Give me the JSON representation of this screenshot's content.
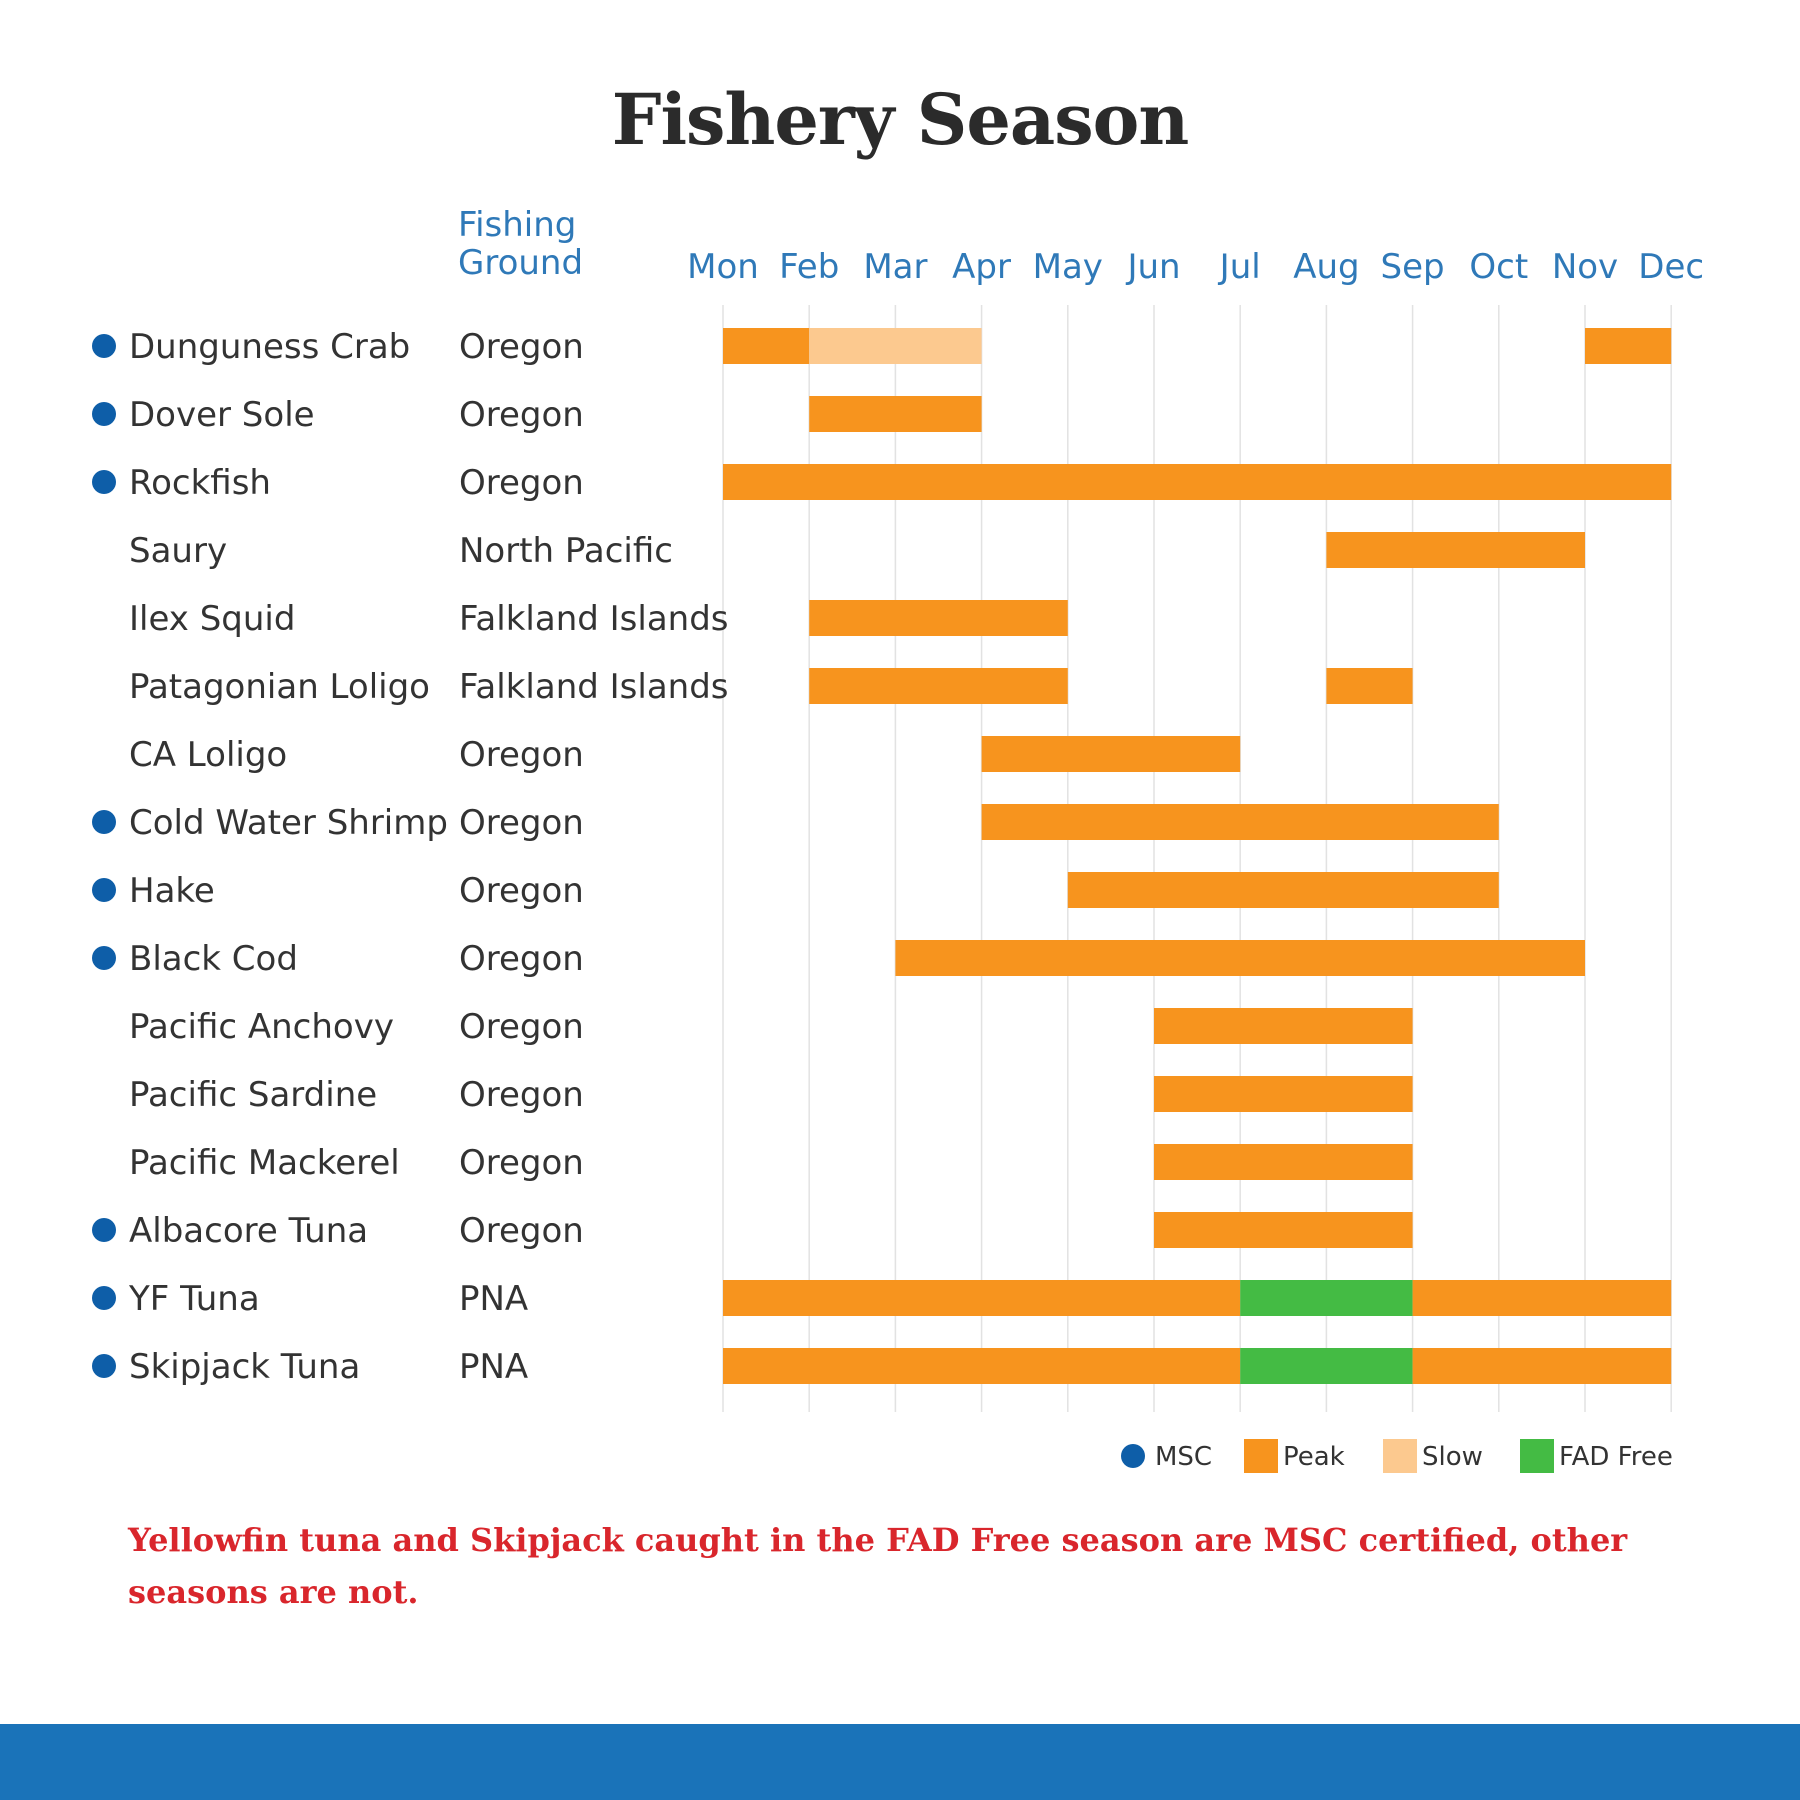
{
  "title": "Fishery Season",
  "footnote": "Yellowfin tuna and Skipjack caught in the FAD Free season are MSC certified, other seasons are not.",
  "chart_data": {
    "type": "gantt",
    "title": "Fishery Season",
    "ground_header": "Fishing Ground",
    "months": [
      "Mon",
      "Feb",
      "Mar",
      "Apr",
      "May",
      "Jun",
      "Jul",
      "Aug",
      "Sep",
      "Oct",
      "Nov",
      "Dec"
    ],
    "colors": {
      "peak": "#f7941e",
      "slow": "#fcc98f",
      "fadfree": "#44bb44",
      "msc": "#0e5ea8",
      "grid": "#e2e2e2"
    },
    "legend": [
      {
        "key": "msc",
        "label": "MSC",
        "marker": "circle"
      },
      {
        "key": "peak",
        "label": "Peak",
        "marker": "square"
      },
      {
        "key": "slow",
        "label": "Slow",
        "marker": "square"
      },
      {
        "key": "fadfree",
        "label": "FAD Free",
        "marker": "square"
      }
    ],
    "rows": [
      {
        "species": "Dunguness Crab",
        "ground": "Oregon",
        "msc": true,
        "segments": [
          {
            "start": 0,
            "end": 1,
            "type": "peak"
          },
          {
            "start": 1,
            "end": 3,
            "type": "slow"
          },
          {
            "start": 10,
            "end": 11,
            "type": "peak"
          }
        ]
      },
      {
        "species": "Dover Sole",
        "ground": "Oregon",
        "msc": true,
        "segments": [
          {
            "start": 1,
            "end": 3,
            "type": "peak"
          }
        ]
      },
      {
        "species": "Rockfish",
        "ground": "Oregon",
        "msc": true,
        "segments": [
          {
            "start": 0,
            "end": 11,
            "type": "peak"
          }
        ]
      },
      {
        "species": "Saury",
        "ground": "North Pacific",
        "msc": false,
        "segments": [
          {
            "start": 7,
            "end": 10,
            "type": "peak"
          }
        ]
      },
      {
        "species": "Ilex Squid",
        "ground": "Falkland Islands",
        "msc": false,
        "segments": [
          {
            "start": 1,
            "end": 4,
            "type": "peak"
          }
        ]
      },
      {
        "species": "Patagonian Loligo",
        "ground": "Falkland Islands",
        "msc": false,
        "segments": [
          {
            "start": 1,
            "end": 4,
            "type": "peak"
          },
          {
            "start": 7,
            "end": 8,
            "type": "peak"
          }
        ]
      },
      {
        "species": "CA Loligo",
        "ground": "Oregon",
        "msc": false,
        "segments": [
          {
            "start": 3,
            "end": 6,
            "type": "peak"
          }
        ]
      },
      {
        "species": "Cold Water Shrimp",
        "ground": "Oregon",
        "msc": true,
        "segments": [
          {
            "start": 3,
            "end": 9,
            "type": "peak"
          }
        ]
      },
      {
        "species": "Hake",
        "ground": "Oregon",
        "msc": true,
        "segments": [
          {
            "start": 4,
            "end": 9,
            "type": "peak"
          }
        ]
      },
      {
        "species": "Black Cod",
        "ground": "Oregon",
        "msc": true,
        "segments": [
          {
            "start": 2,
            "end": 10,
            "type": "peak"
          }
        ]
      },
      {
        "species": "Pacific Anchovy",
        "ground": "Oregon",
        "msc": false,
        "segments": [
          {
            "start": 5,
            "end": 8,
            "type": "peak"
          }
        ]
      },
      {
        "species": "Pacific Sardine",
        "ground": "Oregon",
        "msc": false,
        "segments": [
          {
            "start": 5,
            "end": 8,
            "type": "peak"
          }
        ]
      },
      {
        "species": "Pacific Mackerel",
        "ground": "Oregon",
        "msc": false,
        "segments": [
          {
            "start": 5,
            "end": 8,
            "type": "peak"
          }
        ]
      },
      {
        "species": "Albacore Tuna",
        "ground": "Oregon",
        "msc": true,
        "segments": [
          {
            "start": 5,
            "end": 8,
            "type": "peak"
          }
        ]
      },
      {
        "species": "YF Tuna",
        "ground": "PNA",
        "msc": true,
        "segments": [
          {
            "start": 0,
            "end": 6,
            "type": "peak"
          },
          {
            "start": 6,
            "end": 8,
            "type": "fadfree"
          },
          {
            "start": 8,
            "end": 11,
            "type": "peak"
          }
        ]
      },
      {
        "species": "Skipjack Tuna",
        "ground": "PNA",
        "msc": true,
        "segments": [
          {
            "start": 0,
            "end": 6,
            "type": "peak"
          },
          {
            "start": 6,
            "end": 8,
            "type": "fadfree"
          },
          {
            "start": 8,
            "end": 11,
            "type": "peak"
          }
        ]
      }
    ]
  }
}
